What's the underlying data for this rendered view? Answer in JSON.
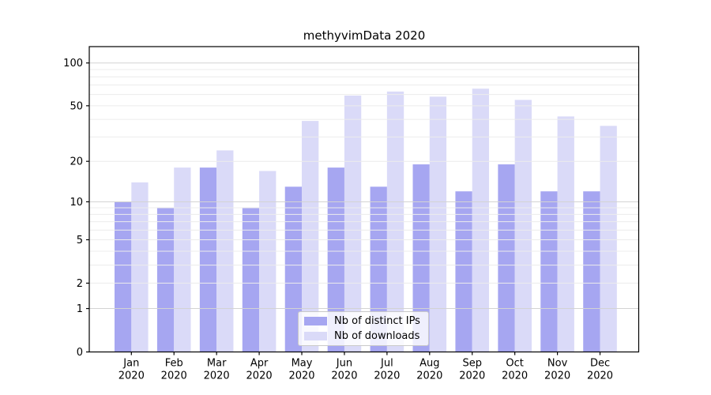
{
  "chart": {
    "title": "methyvimData 2020",
    "legend": {
      "items": [
        {
          "label": "Nb of distinct IPs",
          "color": "#a6a6f1"
        },
        {
          "label": "Nb of downloads",
          "color": "#dadaf8"
        }
      ]
    }
  },
  "chart_data": {
    "type": "bar",
    "title": "methyvimData 2020",
    "categories": [
      "Jan",
      "Feb",
      "Mar",
      "Apr",
      "May",
      "Jun",
      "Jul",
      "Aug",
      "Sep",
      "Oct",
      "Nov",
      "Dec"
    ],
    "x_year_line": "2020",
    "series": [
      {
        "name": "Nb of distinct IPs",
        "color": "#a6a6f1",
        "values": [
          10,
          9,
          18,
          9,
          13,
          18,
          13,
          19,
          12,
          19,
          12,
          12
        ]
      },
      {
        "name": "Nb of downloads",
        "color": "#dadaf8",
        "values": [
          14,
          18,
          24,
          17,
          39,
          59,
          63,
          58,
          66,
          55,
          42,
          36
        ]
      }
    ],
    "xlabel": "",
    "ylabel": "",
    "yscale": "log10(value+1)",
    "ylim": [
      0,
      130
    ],
    "yticks": [
      0,
      1,
      2,
      5,
      10,
      20,
      50,
      100
    ],
    "ytick_labels": [
      "0",
      "1",
      "2",
      "5",
      "10",
      "20",
      "50",
      "100"
    ],
    "gridlines": {
      "orientation": "horizontal",
      "major": [
        1,
        10,
        100
      ],
      "minor": [
        2,
        3,
        4,
        5,
        6,
        7,
        8,
        9,
        20,
        30,
        40,
        50,
        60,
        70,
        80,
        90
      ],
      "major_color": "#d3d3d3",
      "minor_color": "#ececec",
      "drawn_above_bars": true
    },
    "legend_position": "inside lower-center",
    "grouped": true,
    "bar_border": "none",
    "plot_border_color": "#000000"
  }
}
